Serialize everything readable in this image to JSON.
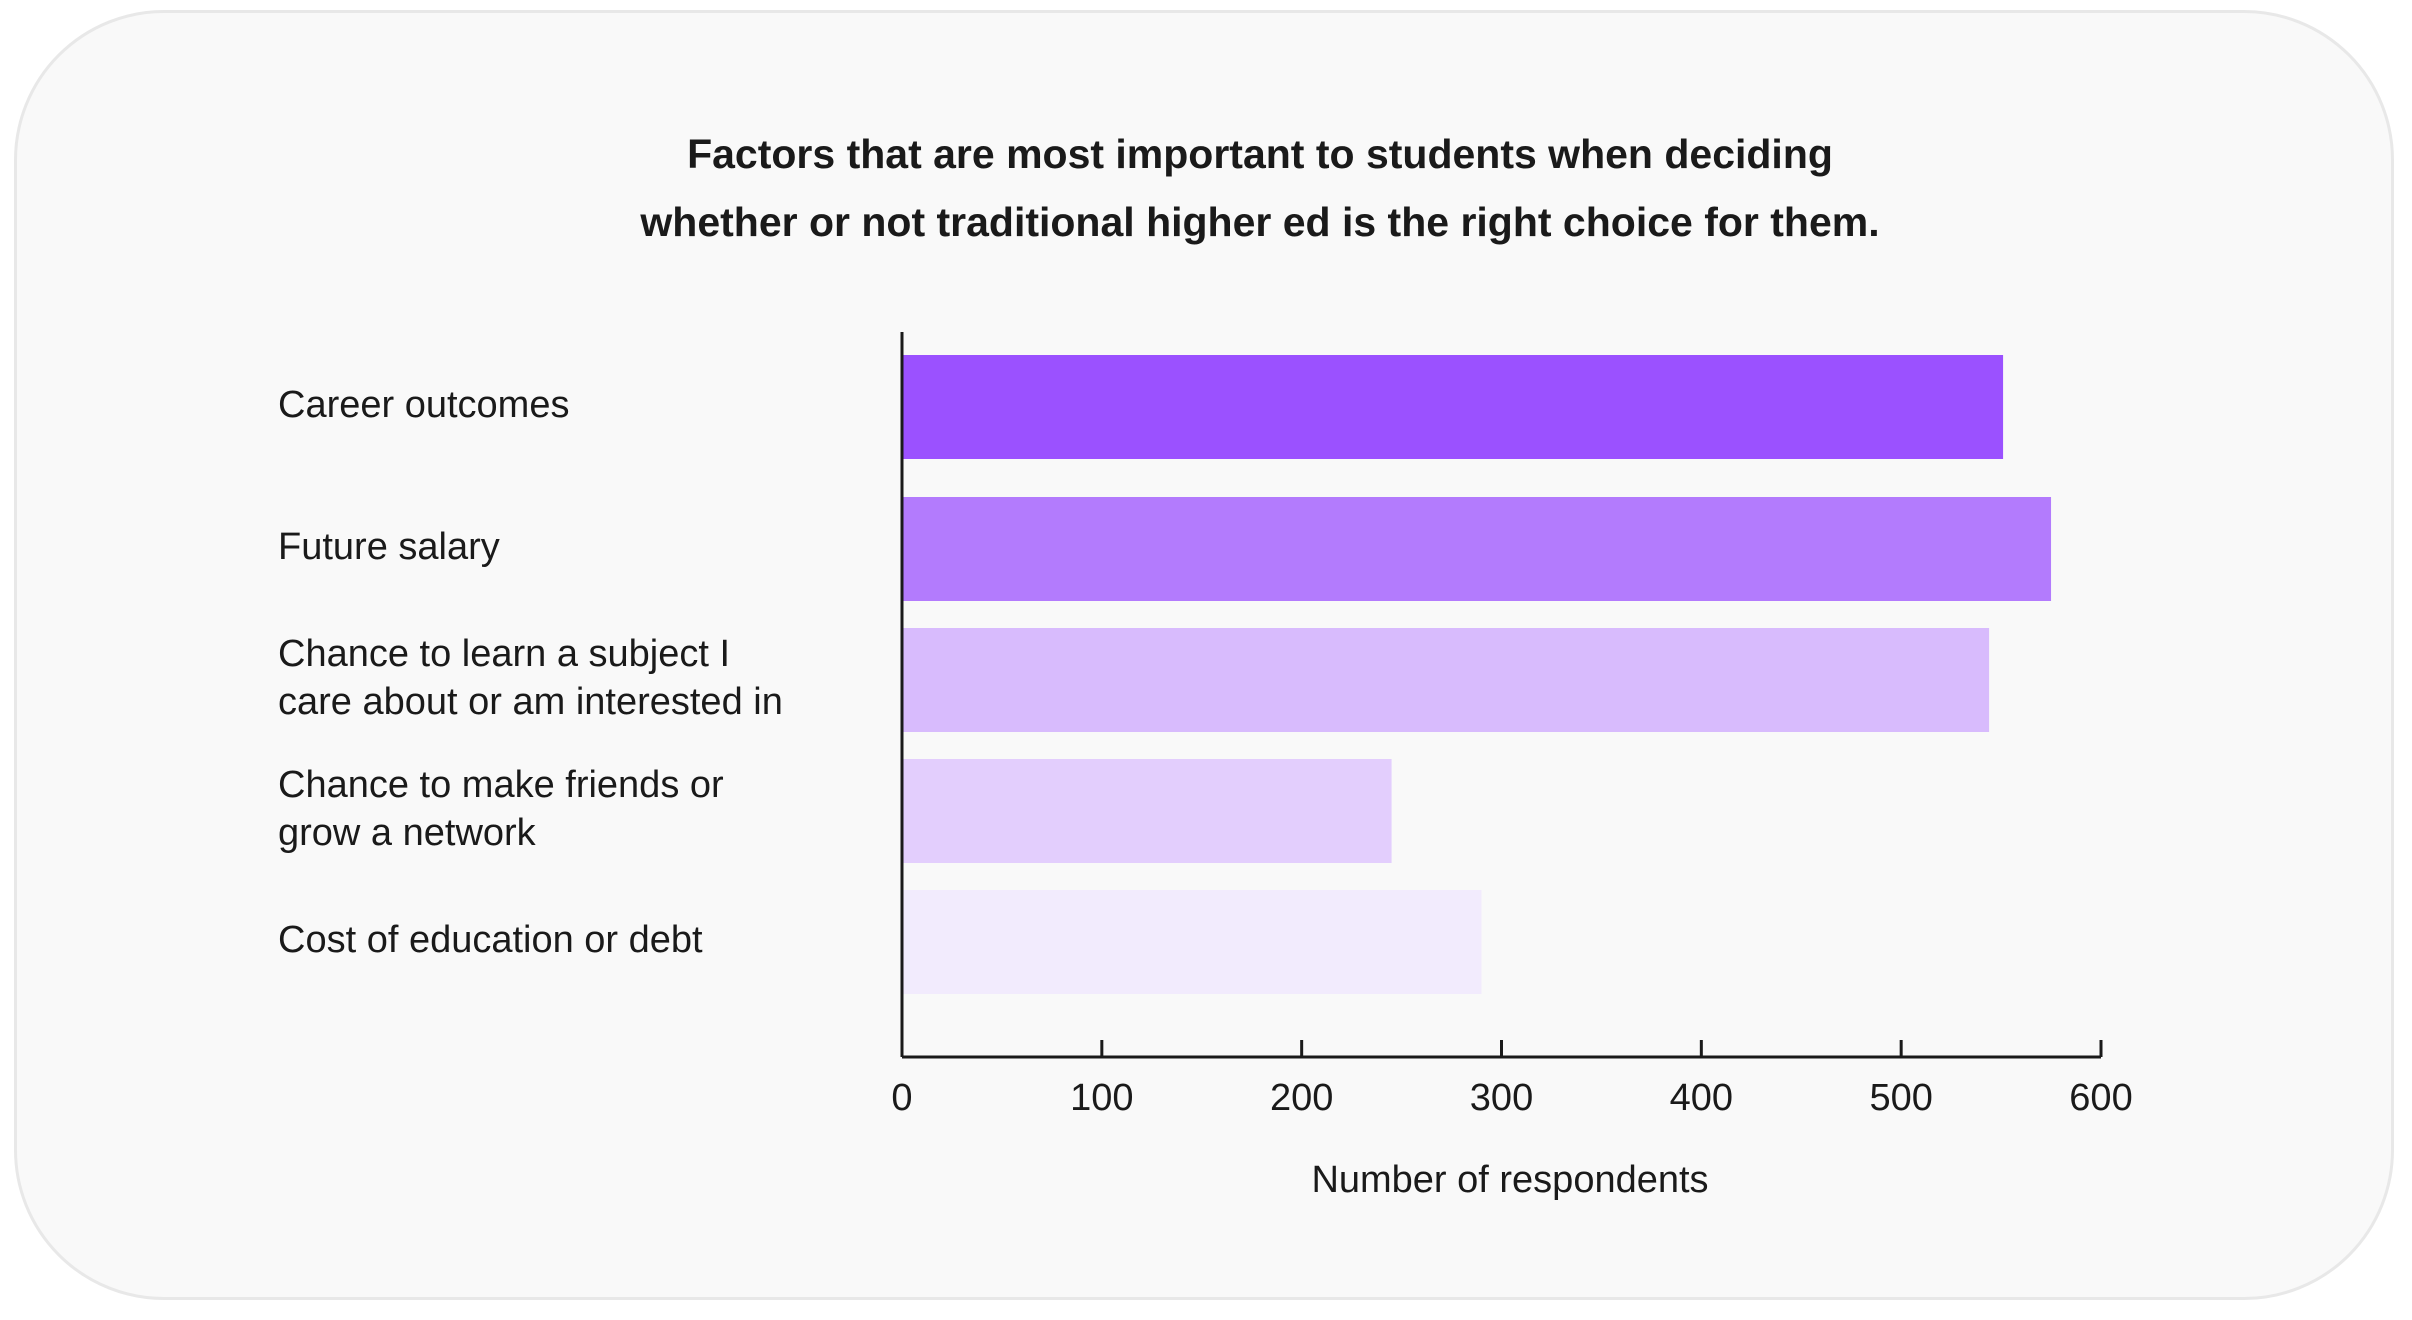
{
  "chart_data": {
    "type": "bar",
    "orientation": "horizontal",
    "title_lines": [
      "Factors that are most important to students when deciding",
      "whether or not traditional higher ed is the right choice for them."
    ],
    "categories": [
      [
        "Career outcomes"
      ],
      [
        "Future salary"
      ],
      [
        "Chance to learn a subject I",
        "care about or am interested in"
      ],
      [
        "Chance to make friends or",
        "grow a network"
      ],
      [
        "Cost of education or debt"
      ]
    ],
    "values": [
      551,
      575,
      544,
      245,
      290
    ],
    "colors": [
      "#9b51ff",
      "#b37bfd",
      "#d8bbfd",
      "#e3cefd",
      "#f2ebfd"
    ],
    "xlabel": "Number of respondents",
    "xlim": [
      0,
      600
    ],
    "xticks": [
      0,
      100,
      200,
      300,
      400,
      500,
      600
    ],
    "grid": false,
    "legend": "none"
  }
}
